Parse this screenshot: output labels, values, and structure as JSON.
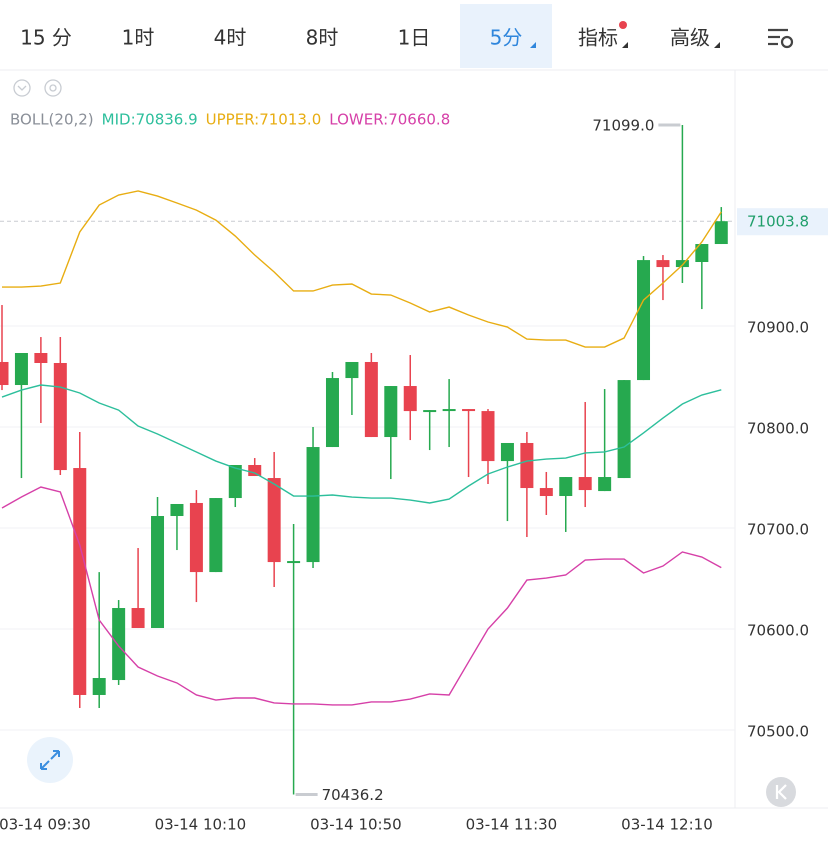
{
  "tabs": [
    "15 分",
    "1时",
    "4时",
    "8时",
    "1日",
    "5分",
    "指标",
    "高级"
  ],
  "active_tab": 5,
  "dropdown_tabs": [
    5,
    6,
    7
  ],
  "dot_tab": 6,
  "chart_data": {
    "type": "candlestick",
    "up_color": "#26a94f",
    "down_color": "#e8434f",
    "categories": [
      null,
      null,
      "03-14 09:30",
      null,
      null,
      null,
      null,
      null,
      null,
      null,
      "03-14 10:10",
      null,
      null,
      null,
      null,
      null,
      null,
      null,
      "03-14 10:50",
      null,
      null,
      null,
      null,
      null,
      null,
      null,
      "03-14 11:30",
      null,
      null,
      null,
      null,
      null,
      null,
      null,
      "03-14 12:10",
      null,
      null,
      null
    ],
    "open": [
      70864.4,
      70841.6,
      70873.3,
      70863.4,
      70759.4,
      70534.7,
      70549.5,
      70620.8,
      70601.0,
      70711.9,
      70724.8,
      70656.4,
      70729.7,
      70762.4,
      70749.5,
      70665.4,
      70666.3,
      70780.2,
      70848.5,
      70864.4,
      70790.1,
      70840.6,
      70815.8,
      70816.8,
      70817.8,
      70815.8,
      70766.3,
      70784.2,
      70739.6,
      70731.7,
      70750.5,
      70736.6,
      70749.5,
      70846.5,
      70965.3,
      70958.4,
      70963.4,
      70981.2
    ],
    "high": [
      70920.8,
      70873.3,
      70889.1,
      70889.1,
      70795.1,
      70656.4,
      70628.7,
      70680.2,
      70730.7,
      70723.8,
      70737.6,
      70729.7,
      70762.4,
      70769.3,
      70775.3,
      70704.0,
      70800.0,
      70854.5,
      70864.4,
      70873.3,
      70840.6,
      70871.3,
      70816.8,
      70847.5,
      70817.8,
      70817.8,
      70784.2,
      70795.1,
      70755.5,
      70750.5,
      70824.8,
      70837.6,
      70846.5,
      70969.3,
      70970.3,
      71099.0,
      70981.2,
      71017.8
    ],
    "low": [
      70836.6,
      70749.5,
      70804.0,
      70752.5,
      70521.8,
      70521.8,
      70544.6,
      70601.0,
      70601.0,
      70678.2,
      70626.7,
      70656.4,
      70720.8,
      70751.5,
      70641.6,
      70436.2,
      70660.4,
      70780.2,
      70811.9,
      70790.1,
      70748.5,
      70787.1,
      70777.2,
      70780.2,
      70750.5,
      70743.6,
      70706.9,
      70691.1,
      70712.9,
      70696.1,
      70720.8,
      70736.6,
      70749.5,
      70846.5,
      70925.7,
      70942.6,
      70916.8,
      70981.2
    ],
    "close": [
      70841.6,
      70873.3,
      70863.4,
      70757.4,
      70534.7,
      70551.5,
      70620.8,
      70601.0,
      70711.9,
      70723.8,
      70656.4,
      70729.7,
      70762.4,
      70751.5,
      70666.3,
      70667.3,
      70780.2,
      70848.5,
      70864.4,
      70790.1,
      70840.6,
      70815.8,
      70816.8,
      70817.8,
      70816.8,
      70766.3,
      70784.2,
      70739.6,
      70731.7,
      70750.5,
      70737.6,
      70750.5,
      70846.5,
      70965.3,
      70958.4,
      70965.3,
      70981.2,
      71003.8
    ],
    "ylim": [
      70422.8,
      71153.5
    ],
    "yticks": [
      {
        "value": 70500,
        "label": "70500.0"
      },
      {
        "value": 70600,
        "label": "70600.0"
      },
      {
        "value": 70700,
        "label": "70700.0"
      },
      {
        "value": 70800,
        "label": "70800.0"
      },
      {
        "value": 70900,
        "label": "70900.0"
      }
    ],
    "grid": true,
    "indicator": {
      "name": "BOLL(20,2)",
      "lines": [
        {
          "name": "MID",
          "label": "MID:70836.9",
          "color": "#2dbf9c",
          "values": [
            70829.7,
            70836.6,
            70841.6,
            70839.6,
            70833.7,
            70823.8,
            70816.8,
            70801.0,
            70793.1,
            70784.2,
            70775.3,
            70766.3,
            70759.4,
            70754.5,
            70743.6,
            70731.7,
            70731.7,
            70732.7,
            70730.7,
            70729.7,
            70729.7,
            70727.7,
            70724.8,
            70728.7,
            70741.6,
            70753.5,
            70760.4,
            70766.3,
            70768.3,
            70769.3,
            70774.3,
            70775.3,
            70780.2,
            70794.1,
            70808.9,
            70822.8,
            70831.7,
            70836.9
          ]
        },
        {
          "name": "UPPER",
          "label": "UPPER:71013.0",
          "color": "#e8ad12",
          "values": [
            70938.6,
            70938.6,
            70939.6,
            70942.6,
            70993.1,
            71019.8,
            71029.7,
            71033.7,
            71028.7,
            71021.8,
            71014.8,
            71004.9,
            70989.1,
            70970.3,
            70953.5,
            70934.7,
            70934.7,
            70940.6,
            70941.6,
            70931.7,
            70930.7,
            70922.8,
            70913.9,
            70918.8,
            70910.9,
            70904.0,
            70899.0,
            70887.1,
            70886.1,
            70886.1,
            70879.2,
            70879.2,
            70888.1,
            70925.7,
            70942.6,
            70960.4,
            70983.2,
            71013.0
          ]
        },
        {
          "name": "LOWER",
          "label": "LOWER:70660.8",
          "color": "#d640a8",
          "values": [
            70719.8,
            70730.7,
            70740.6,
            70735.7,
            70683.2,
            70608.9,
            70583.2,
            70562.4,
            70553.5,
            70546.6,
            70534.7,
            70529.7,
            70531.7,
            70531.7,
            70526.8,
            70525.8,
            70525.8,
            70524.8,
            70524.8,
            70527.8,
            70527.8,
            70530.7,
            70535.7,
            70534.7,
            70567.4,
            70600.0,
            70620.8,
            70648.5,
            70650.5,
            70653.5,
            70668.3,
            70669.3,
            70669.3,
            70655.5,
            70662.4,
            70676.3,
            70671.3,
            70660.8
          ]
        }
      ]
    },
    "high_label": "71099.0",
    "low_label": "70436.2",
    "last_label": "71003.8"
  }
}
